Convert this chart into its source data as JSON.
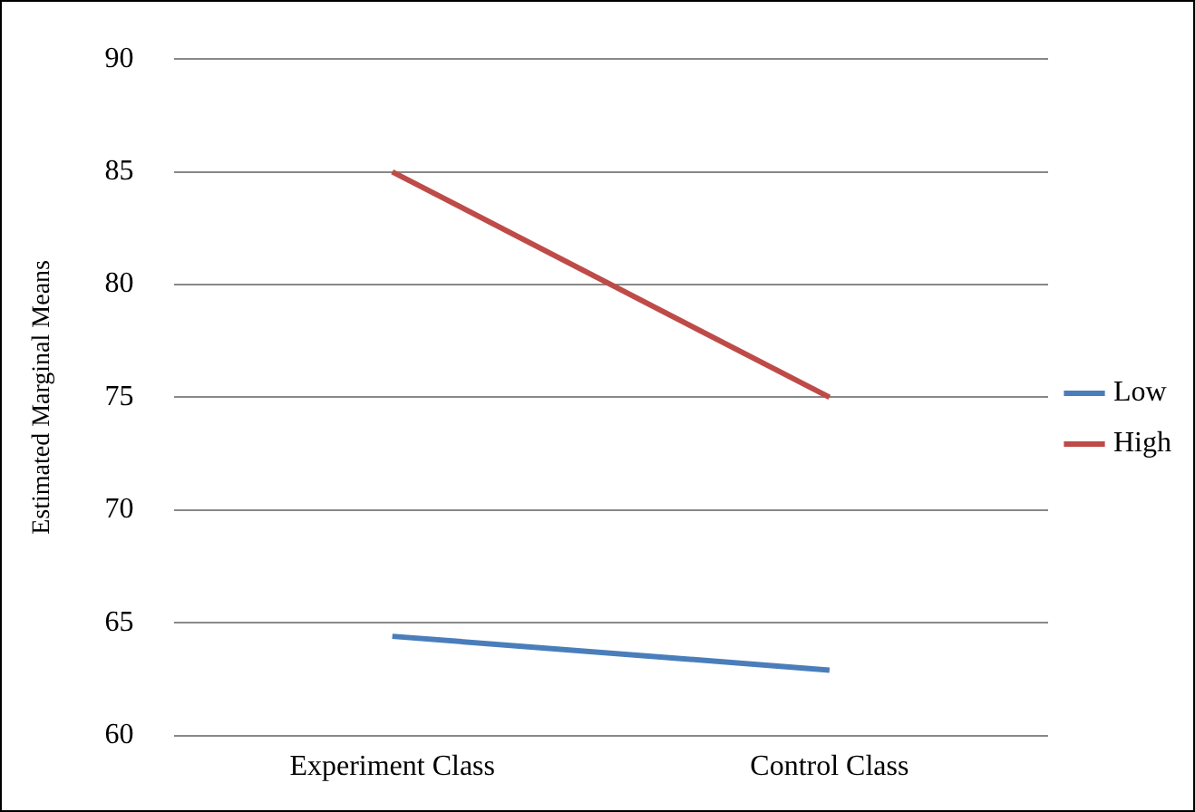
{
  "chart_data": {
    "type": "line",
    "ylabel": "Estimated Marginal Means",
    "categories": [
      "Experiment Class",
      "Control Class"
    ],
    "series": [
      {
        "name": "Low",
        "color": "#4a7ebb",
        "values": [
          64.4,
          62.9
        ]
      },
      {
        "name": "High",
        "color": "#be4b48",
        "values": [
          85,
          75
        ]
      }
    ],
    "ylim": [
      60,
      90
    ],
    "yticks": [
      60,
      65,
      70,
      75,
      80,
      85,
      90
    ],
    "grid": "y",
    "legend": "right",
    "marker": "none",
    "line_style": "solid"
  }
}
